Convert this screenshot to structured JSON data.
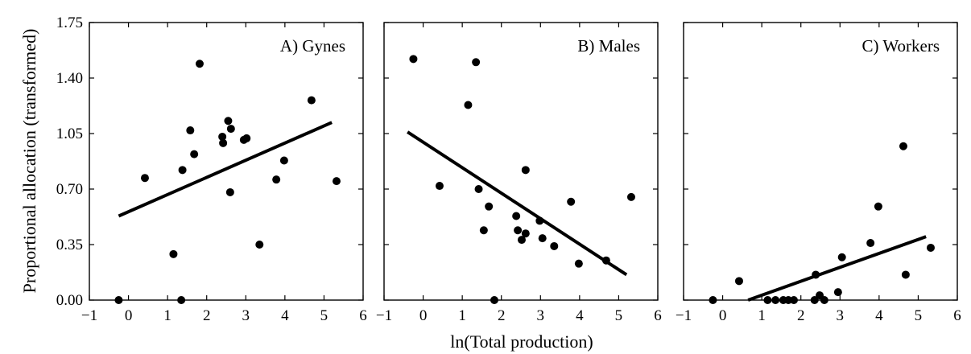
{
  "figure": {
    "ylabel": "Proportional allocation (transformed)",
    "xlabel": "ln(Total production)"
  },
  "chart_data": [
    {
      "type": "scatter",
      "title": "A) Gynes",
      "xlabel": "ln(Total production)",
      "ylabel": "Proportional allocation (transformed)",
      "xlim": [
        -1,
        6
      ],
      "ylim": [
        0,
        1.75
      ],
      "x_ticks": [
        -1,
        0,
        1,
        2,
        3,
        4,
        5,
        6
      ],
      "y_ticks": [
        "0.00",
        "0.35",
        "0.70",
        "1.05",
        "1.40",
        "1.75"
      ],
      "grid": false,
      "points": [
        [
          -0.25,
          0.0
        ],
        [
          0.42,
          0.77
        ],
        [
          1.15,
          0.29
        ],
        [
          1.35,
          0.0
        ],
        [
          1.38,
          0.82
        ],
        [
          1.58,
          1.07
        ],
        [
          1.68,
          0.92
        ],
        [
          1.82,
          1.49
        ],
        [
          2.4,
          1.03
        ],
        [
          2.42,
          0.99
        ],
        [
          2.55,
          1.13
        ],
        [
          2.62,
          1.08
        ],
        [
          2.6,
          0.68
        ],
        [
          2.95,
          1.01
        ],
        [
          3.02,
          1.02
        ],
        [
          3.35,
          0.35
        ],
        [
          3.78,
          0.76
        ],
        [
          3.98,
          0.88
        ],
        [
          4.68,
          1.26
        ],
        [
          5.32,
          0.75
        ]
      ],
      "trend_line": {
        "x": [
          -0.25,
          5.2
        ],
        "y": [
          0.53,
          1.12
        ]
      }
    },
    {
      "type": "scatter",
      "title": "B) Males",
      "xlabel": "ln(Total production)",
      "ylabel": "Proportional allocation (transformed)",
      "xlim": [
        -1,
        6
      ],
      "ylim": [
        0,
        1.75
      ],
      "x_ticks": [
        -1,
        0,
        1,
        2,
        3,
        4,
        5,
        6
      ],
      "y_ticks": [
        "0.00",
        "0.35",
        "0.70",
        "1.05",
        "1.40",
        "1.75"
      ],
      "grid": false,
      "points": [
        [
          -0.25,
          1.52
        ],
        [
          0.42,
          0.72
        ],
        [
          1.15,
          1.23
        ],
        [
          1.35,
          1.5
        ],
        [
          1.42,
          0.7
        ],
        [
          1.55,
          0.44
        ],
        [
          1.68,
          0.59
        ],
        [
          1.82,
          0.0
        ],
        [
          2.38,
          0.53
        ],
        [
          2.42,
          0.44
        ],
        [
          2.52,
          0.38
        ],
        [
          2.62,
          0.42
        ],
        [
          2.62,
          0.82
        ],
        [
          2.98,
          0.5
        ],
        [
          3.05,
          0.39
        ],
        [
          3.35,
          0.34
        ],
        [
          3.78,
          0.62
        ],
        [
          3.98,
          0.23
        ],
        [
          4.68,
          0.25
        ],
        [
          5.32,
          0.65
        ]
      ],
      "trend_line": {
        "x": [
          -0.4,
          5.2
        ],
        "y": [
          1.06,
          0.16
        ]
      }
    },
    {
      "type": "scatter",
      "title": "C) Workers",
      "xlabel": "ln(Total production)",
      "ylabel": "Proportional allocation (transformed)",
      "xlim": [
        -1,
        6
      ],
      "ylim": [
        0,
        1.75
      ],
      "x_ticks": [
        -1,
        0,
        1,
        2,
        3,
        4,
        5,
        6
      ],
      "y_ticks": [
        "0.00",
        "0.35",
        "0.70",
        "1.05",
        "1.40",
        "1.75"
      ],
      "grid": false,
      "points": [
        [
          -0.25,
          0.0
        ],
        [
          0.42,
          0.12
        ],
        [
          1.15,
          0.0
        ],
        [
          1.35,
          0.0
        ],
        [
          1.55,
          0.0
        ],
        [
          1.68,
          0.0
        ],
        [
          1.82,
          0.0
        ],
        [
          2.35,
          0.0
        ],
        [
          2.38,
          0.16
        ],
        [
          2.48,
          0.03
        ],
        [
          2.6,
          0.0
        ],
        [
          2.95,
          0.05
        ],
        [
          3.05,
          0.27
        ],
        [
          3.78,
          0.36
        ],
        [
          3.98,
          0.59
        ],
        [
          4.62,
          0.97
        ],
        [
          4.68,
          0.16
        ],
        [
          5.32,
          0.33
        ]
      ],
      "trend_line": {
        "x": [
          0.65,
          5.2
        ],
        "y": [
          0.0,
          0.4
        ]
      }
    }
  ]
}
